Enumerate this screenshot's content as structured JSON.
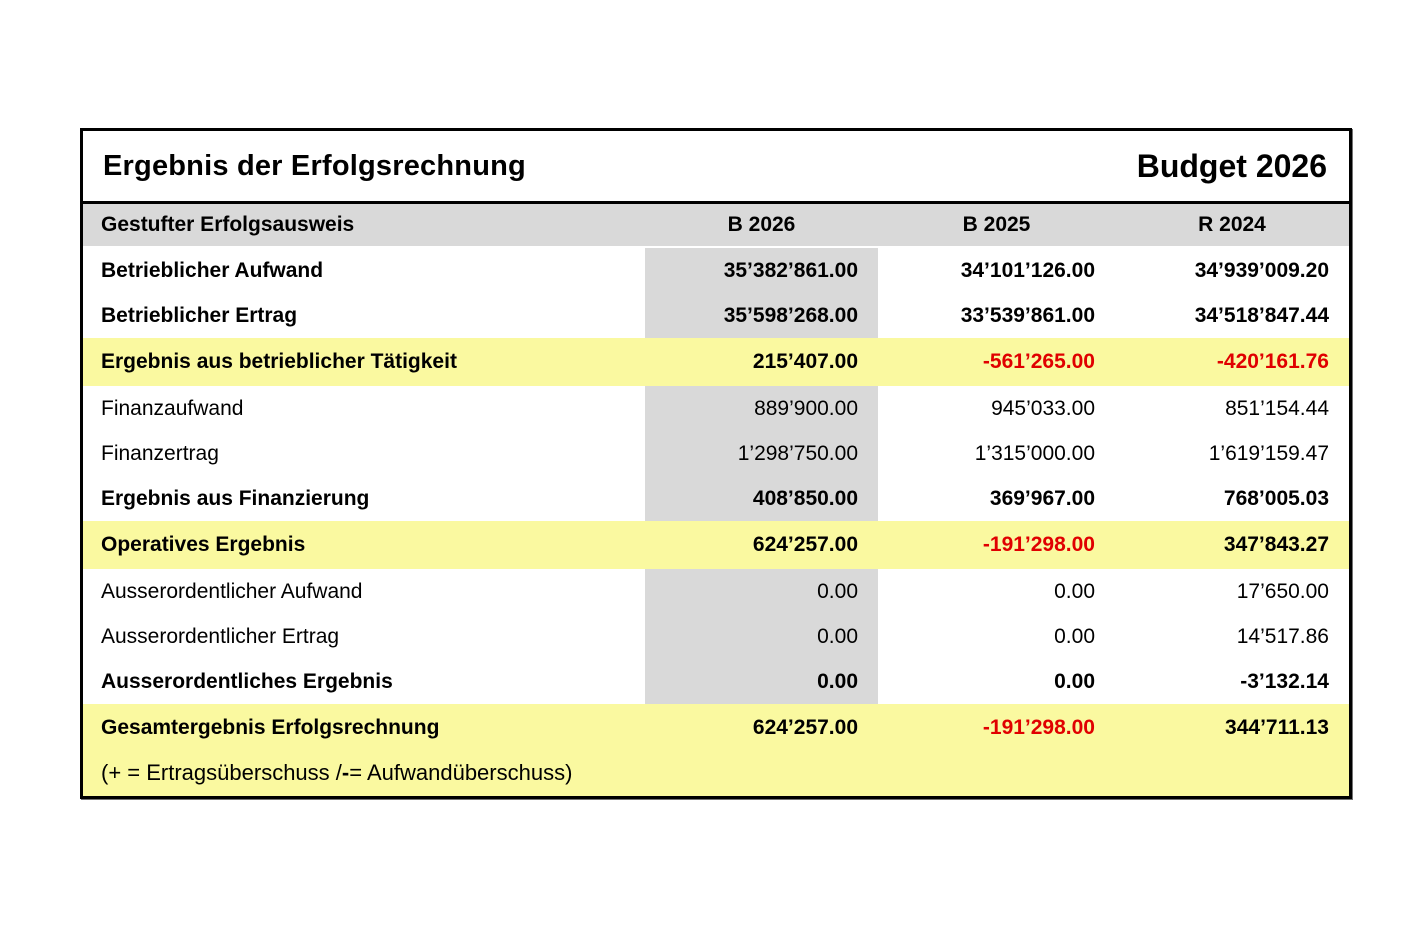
{
  "table": {
    "title": "Ergebnis der Erfolgsrechnung",
    "budget_label": "Budget 2026",
    "columns": {
      "label": "Gestufter Erfolgsausweis",
      "b2026": "B 2026",
      "b2025": "B 2025",
      "r2024": "R 2024"
    },
    "negative_style": "color:#e00000;",
    "colors": {
      "negative": "#e00000",
      "highlight_row_bg": "#faf9a0",
      "header_bg": "#d9d9d9",
      "b2026_column_bg": "#d9d9d9",
      "border": "#000000"
    },
    "rows": [
      {
        "label": "Betrieblicher Aufwand",
        "b2026": "35’382’861.00",
        "b2025": "34’101’126.00",
        "r2024": "34’939’009.20"
      },
      {
        "label": "Betrieblicher Ertrag",
        "b2026": "35’598’268.00",
        "b2025": "33’539’861.00",
        "r2024": "34’518’847.44"
      },
      {
        "label": "Ergebnis aus betrieblicher Tätigkeit",
        "b2026": "215’407.00",
        "b2025": "-561’265.00",
        "r2024": "-420’161.76"
      },
      {
        "label": "Finanzaufwand",
        "b2026": "889’900.00",
        "b2025": "945’033.00",
        "r2024": "851’154.44"
      },
      {
        "label": "Finanzertrag",
        "b2026": "1’298’750.00",
        "b2025": "1’315’000.00",
        "r2024": "1’619’159.47"
      },
      {
        "label": "Ergebnis aus Finanzierung",
        "b2026": "408’850.00",
        "b2025": "369’967.00",
        "r2024": "768’005.03"
      },
      {
        "label": "Operatives Ergebnis",
        "b2026": "624’257.00",
        "b2025": "-191’298.00",
        "r2024": "347’843.27"
      },
      {
        "label": "Ausserordentlicher Aufwand",
        "b2026": "0.00",
        "b2025": "0.00",
        "r2024": "17’650.00"
      },
      {
        "label": "Ausserordentlicher Ertrag",
        "b2026": "0.00",
        "b2025": "0.00",
        "r2024": "14’517.86"
      },
      {
        "label": "Ausserordentliches Ergebnis",
        "b2026": "0.00",
        "b2025": "0.00",
        "r2024": "-3’132.14"
      },
      {
        "label": "Gesamtergebnis Erfolgsrechnung",
        "b2026": "624’257.00",
        "b2025": "-191’298.00",
        "r2024": "344’711.13"
      }
    ],
    "footnote": {
      "pre": "(+ = Ertragsüberschuss / ",
      "minus": "-",
      "post": " = Aufwandüberschuss)"
    }
  }
}
